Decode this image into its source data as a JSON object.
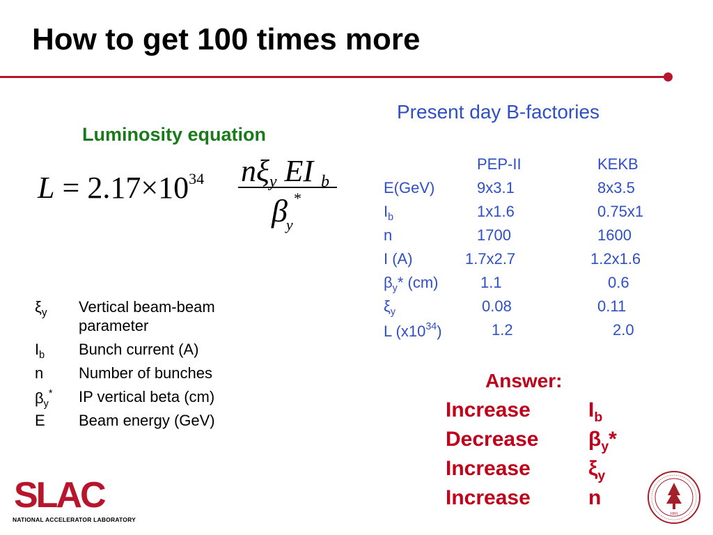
{
  "title": "How to get 100 times more",
  "accent_color": "#b8142c",
  "luminosity": {
    "heading": "Luminosity equation",
    "equation": {
      "lhs_var": "L",
      "equals": "=",
      "coefficient": "2.17",
      "times": "×",
      "base": "10",
      "exponent": "34",
      "num_n": "n",
      "num_xi": "ξ",
      "num_xi_sub": "y",
      "num_E": "E",
      "num_I": "I",
      "num_I_sub": "b",
      "den_beta": "β",
      "den_beta_sub": "y",
      "den_beta_sup": "*"
    }
  },
  "legend": [
    {
      "sym": "ξ",
      "sub": "y",
      "sup": "",
      "text": "Vertical beam-beam",
      "text2": "parameter"
    },
    {
      "sym": "I",
      "sub": "b",
      "sup": "",
      "text": "Bunch current (A)"
    },
    {
      "sym": "n",
      "sub": "",
      "sup": "",
      "text": "Number of bunches"
    },
    {
      "sym": "β",
      "sub": "y",
      "sup": "*",
      "text": "IP vertical beta (cm)"
    },
    {
      "sym": "E",
      "sub": "",
      "sup": "",
      "text": "Beam energy (GeV)"
    }
  ],
  "bfactories": {
    "heading": "Present day B-factories",
    "columns": [
      "PEP-II",
      "KEKB"
    ],
    "rows": [
      {
        "label": "E(GeV)",
        "label_sub": "",
        "label_sup": "",
        "label_tail": "",
        "pep": "9x3.1",
        "kekb": "8x3.5"
      },
      {
        "label": "I",
        "label_sub": "b",
        "label_sup": "",
        "label_tail": "",
        "pep": "1x1.6",
        "kekb": "0.75x1"
      },
      {
        "label": "n",
        "label_sub": "",
        "label_sup": "",
        "label_tail": "",
        "pep": "1700",
        "kekb": "1600"
      },
      {
        "label": "I (A)",
        "label_sub": "",
        "label_sup": "",
        "label_tail": "",
        "pep": "1.7x2.7",
        "kekb": "1.2x1.6"
      },
      {
        "label": "β",
        "label_sub": "y",
        "label_sup": "",
        "label_tail": "* (cm)",
        "pep": "1.1",
        "kekb": "0.6"
      },
      {
        "label": "ξ",
        "label_sub": "y",
        "label_sup": "",
        "label_tail": "",
        "pep": "0.08",
        "kekb": "0.11"
      },
      {
        "label": "L (x10",
        "label_sub": "",
        "label_sup": "34",
        "label_tail": ")",
        "pep": "1.2",
        "kekb": "2.0"
      }
    ]
  },
  "answer": {
    "heading": "Answer:",
    "items": [
      {
        "verb": "Increase",
        "sym": "I",
        "sub": "b",
        "tail": ""
      },
      {
        "verb": "Decrease",
        "sym": "β",
        "sub": "y",
        "tail": "*"
      },
      {
        "verb": "Increase",
        "sym": "ξ",
        "sub": "y",
        "tail": ""
      },
      {
        "verb": "Increase",
        "sym": "n",
        "sub": "",
        "tail": ""
      }
    ]
  },
  "footer": {
    "slac_logo_text": "SLAC",
    "slac_subtitle": "NATIONAL ACCELERATOR LABORATORY",
    "seal_icon": "stanford-seal-icon",
    "seal_year": "1891"
  }
}
